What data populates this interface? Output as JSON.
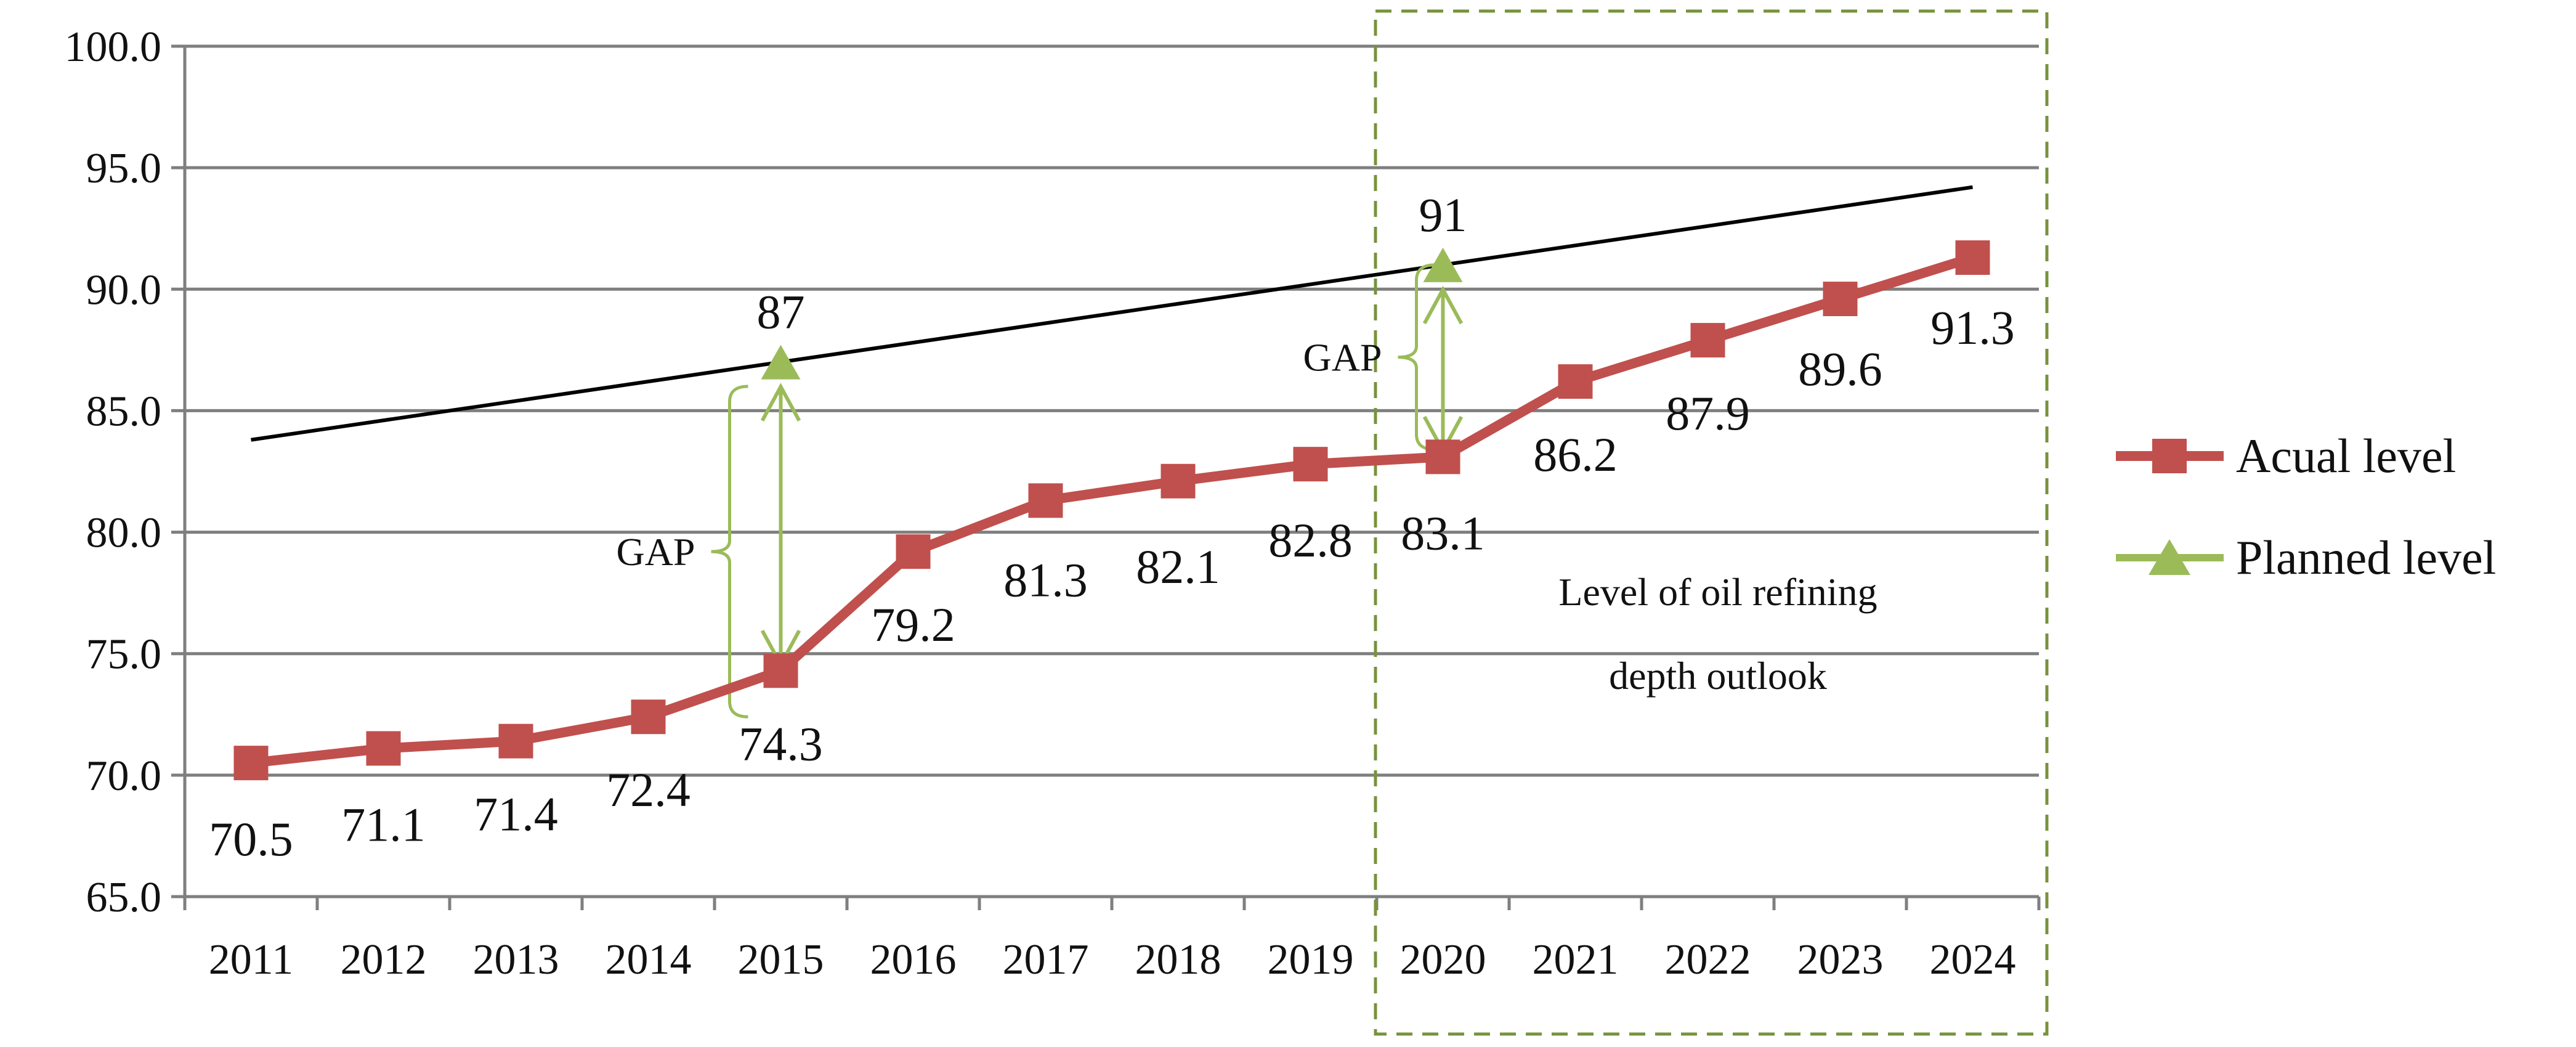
{
  "chart_data": {
    "type": "line",
    "title": "",
    "xlabel": "",
    "ylabel": "",
    "categories": [
      "2011",
      "2012",
      "2013",
      "2014",
      "2015",
      "2016",
      "2017",
      "2018",
      "2019",
      "2020",
      "2021",
      "2022",
      "2023",
      "2024"
    ],
    "ylim": [
      65.0,
      100.0
    ],
    "yticks": [
      "65.0",
      "70.0",
      "75.0",
      "80.0",
      "85.0",
      "90.0",
      "95.0",
      "100.0"
    ],
    "grid": true,
    "series": [
      {
        "name": "Acual level",
        "marker": "square",
        "color": "#c0504d",
        "values": [
          70.5,
          71.1,
          71.4,
          72.4,
          74.3,
          79.2,
          81.3,
          82.1,
          82.8,
          83.1,
          86.2,
          87.9,
          89.6,
          91.3
        ],
        "labels": [
          "70.5",
          "71.1",
          "71.4",
          "72.4",
          "74.3",
          "79.2",
          "81.3",
          "82.1",
          "82.8",
          "83.1",
          "86.2",
          "87.9",
          "89.6",
          "91.3"
        ]
      },
      {
        "name": "Planned level",
        "marker": "triangle",
        "color": "#9bbb59",
        "points": [
          {
            "category": "2015",
            "value": 87,
            "label": "87"
          },
          {
            "category": "2020",
            "value": 91,
            "label": "91"
          }
        ]
      }
    ],
    "trendline": {
      "from_category": "2011",
      "from_value": 83.8,
      "to_category": "2024",
      "to_value": 94.2,
      "color": "#000000"
    },
    "gaps": [
      {
        "category": "2015",
        "from": 74.3,
        "to": 87,
        "label": "GAP"
      },
      {
        "category": "2020",
        "from": 83.1,
        "to": 91,
        "label": "GAP"
      }
    ],
    "outlook_region": {
      "from_category": "2020",
      "to_category": "2024",
      "label_line1": "Level of oil refining",
      "label_line2": "depth outlook",
      "color": "#77933c"
    },
    "legend": {
      "position": "right"
    }
  }
}
